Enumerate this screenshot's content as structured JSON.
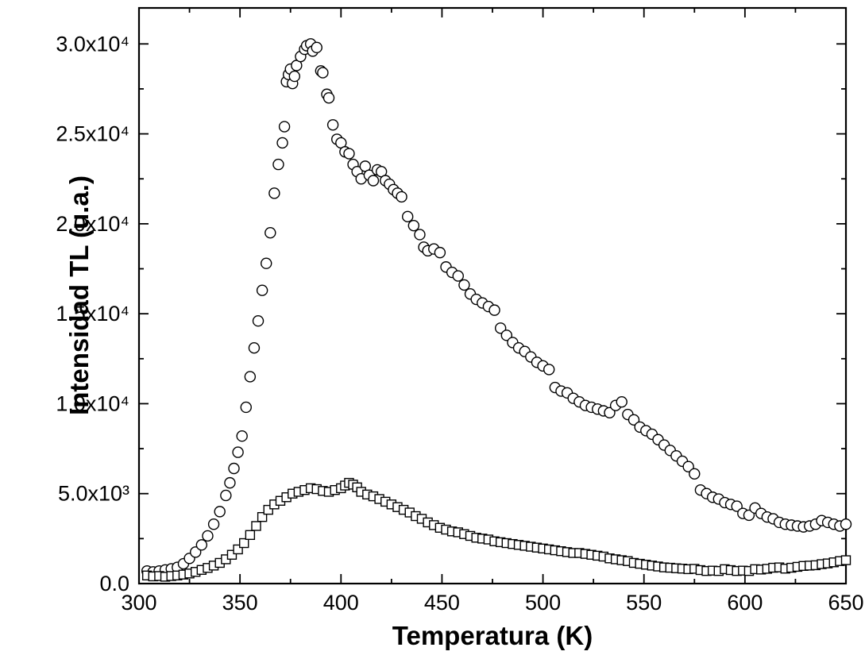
{
  "figure": {
    "background": "#ffffff",
    "frame_color": "#000000",
    "marker_color": "#000000",
    "marker_fill": "#ffffff"
  },
  "chart_data": {
    "type": "scatter",
    "title": "",
    "xlabel": "Temperatura (K)",
    "ylabel": "Intensidad TL (u.a.)",
    "xlim": [
      300,
      650
    ],
    "ylim": [
      0,
      32000
    ],
    "grid": false,
    "legend": "none",
    "frame": true,
    "x_major_ticks": [
      300,
      350,
      400,
      450,
      500,
      550,
      600,
      650
    ],
    "x_tick_labels": [
      "300",
      "350",
      "400",
      "450",
      "500",
      "550",
      "600",
      "650"
    ],
    "x_minor_step": 25,
    "y_major_ticks": [
      0,
      5000,
      10000,
      15000,
      20000,
      25000,
      30000
    ],
    "y_tick_labels": [
      "0.0",
      "5.0x10³",
      "1.0x10⁴",
      "1.5x10⁴",
      "2.0x10⁴",
      "2.5x10⁴",
      "3.0x10⁴"
    ],
    "y_minor_step": 2500,
    "series": [
      {
        "name": "circle-series",
        "marker": "circle",
        "points": [
          [
            304,
            700
          ],
          [
            307,
            650
          ],
          [
            310,
            700
          ],
          [
            313,
            760
          ],
          [
            316,
            820
          ],
          [
            319,
            900
          ],
          [
            322,
            1100
          ],
          [
            325,
            1400
          ],
          [
            328,
            1750
          ],
          [
            331,
            2150
          ],
          [
            334,
            2650
          ],
          [
            337,
            3300
          ],
          [
            340,
            4000
          ],
          [
            343,
            4900
          ],
          [
            345,
            5600
          ],
          [
            347,
            6400
          ],
          [
            349,
            7300
          ],
          [
            351,
            8200
          ],
          [
            353,
            9800
          ],
          [
            355,
            11500
          ],
          [
            357,
            13100
          ],
          [
            359,
            14600
          ],
          [
            361,
            16300
          ],
          [
            363,
            17800
          ],
          [
            365,
            19500
          ],
          [
            367,
            21700
          ],
          [
            369,
            23300
          ],
          [
            371,
            24500
          ],
          [
            372,
            25400
          ],
          [
            373,
            27900
          ],
          [
            374,
            28300
          ],
          [
            375,
            28600
          ],
          [
            376,
            27800
          ],
          [
            377,
            28200
          ],
          [
            378,
            28800
          ],
          [
            380,
            29300
          ],
          [
            382,
            29700
          ],
          [
            383,
            29900
          ],
          [
            385,
            30000
          ],
          [
            386,
            29600
          ],
          [
            388,
            29800
          ],
          [
            390,
            28500
          ],
          [
            391,
            28400
          ],
          [
            393,
            27200
          ],
          [
            394,
            27000
          ],
          [
            396,
            25500
          ],
          [
            398,
            24700
          ],
          [
            400,
            24500
          ],
          [
            402,
            24000
          ],
          [
            404,
            23900
          ],
          [
            406,
            23300
          ],
          [
            408,
            22900
          ],
          [
            410,
            22500
          ],
          [
            412,
            23200
          ],
          [
            414,
            22700
          ],
          [
            416,
            22400
          ],
          [
            418,
            23000
          ],
          [
            420,
            22900
          ],
          [
            422,
            22400
          ],
          [
            424,
            22200
          ],
          [
            426,
            21900
          ],
          [
            428,
            21700
          ],
          [
            430,
            21500
          ],
          [
            433,
            20400
          ],
          [
            436,
            19900
          ],
          [
            439,
            19400
          ],
          [
            441,
            18700
          ],
          [
            443,
            18500
          ],
          [
            446,
            18600
          ],
          [
            449,
            18400
          ],
          [
            452,
            17600
          ],
          [
            455,
            17300
          ],
          [
            458,
            17100
          ],
          [
            461,
            16600
          ],
          [
            464,
            16100
          ],
          [
            467,
            15800
          ],
          [
            470,
            15600
          ],
          [
            473,
            15400
          ],
          [
            476,
            15200
          ],
          [
            479,
            14200
          ],
          [
            482,
            13800
          ],
          [
            485,
            13400
          ],
          [
            488,
            13100
          ],
          [
            491,
            12900
          ],
          [
            494,
            12600
          ],
          [
            497,
            12300
          ],
          [
            500,
            12100
          ],
          [
            503,
            11900
          ],
          [
            506,
            10900
          ],
          [
            509,
            10700
          ],
          [
            512,
            10600
          ],
          [
            515,
            10300
          ],
          [
            518,
            10100
          ],
          [
            521,
            9900
          ],
          [
            524,
            9800
          ],
          [
            527,
            9700
          ],
          [
            530,
            9600
          ],
          [
            533,
            9500
          ],
          [
            536,
            9900
          ],
          [
            539,
            10100
          ],
          [
            542,
            9400
          ],
          [
            545,
            9100
          ],
          [
            548,
            8700
          ],
          [
            551,
            8500
          ],
          [
            554,
            8300
          ],
          [
            557,
            8000
          ],
          [
            560,
            7700
          ],
          [
            563,
            7400
          ],
          [
            566,
            7100
          ],
          [
            569,
            6800
          ],
          [
            572,
            6500
          ],
          [
            575,
            6100
          ],
          [
            578,
            5200
          ],
          [
            581,
            5000
          ],
          [
            584,
            4800
          ],
          [
            587,
            4700
          ],
          [
            590,
            4500
          ],
          [
            593,
            4400
          ],
          [
            596,
            4300
          ],
          [
            599,
            3900
          ],
          [
            602,
            3800
          ],
          [
            605,
            4200
          ],
          [
            608,
            3900
          ],
          [
            611,
            3700
          ],
          [
            614,
            3600
          ],
          [
            617,
            3400
          ],
          [
            620,
            3300
          ],
          [
            623,
            3250
          ],
          [
            626,
            3200
          ],
          [
            629,
            3150
          ],
          [
            632,
            3200
          ],
          [
            635,
            3300
          ],
          [
            638,
            3500
          ],
          [
            641,
            3400
          ],
          [
            644,
            3300
          ],
          [
            647,
            3200
          ],
          [
            650,
            3300
          ]
        ]
      },
      {
        "name": "square-series",
        "marker": "square",
        "points": [
          [
            304,
            450
          ],
          [
            307,
            400
          ],
          [
            310,
            420
          ],
          [
            313,
            380
          ],
          [
            316,
            420
          ],
          [
            319,
            450
          ],
          [
            322,
            500
          ],
          [
            325,
            560
          ],
          [
            328,
            650
          ],
          [
            331,
            760
          ],
          [
            334,
            870
          ],
          [
            337,
            1000
          ],
          [
            340,
            1150
          ],
          [
            343,
            1350
          ],
          [
            346,
            1600
          ],
          [
            349,
            1900
          ],
          [
            352,
            2250
          ],
          [
            355,
            2700
          ],
          [
            358,
            3200
          ],
          [
            361,
            3700
          ],
          [
            364,
            4100
          ],
          [
            367,
            4400
          ],
          [
            370,
            4600
          ],
          [
            373,
            4800
          ],
          [
            376,
            5000
          ],
          [
            379,
            5100
          ],
          [
            382,
            5200
          ],
          [
            385,
            5300
          ],
          [
            388,
            5250
          ],
          [
            391,
            5150
          ],
          [
            394,
            5100
          ],
          [
            397,
            5200
          ],
          [
            400,
            5300
          ],
          [
            402,
            5450
          ],
          [
            404,
            5600
          ],
          [
            406,
            5500
          ],
          [
            408,
            5350
          ],
          [
            410,
            5100
          ],
          [
            413,
            4950
          ],
          [
            416,
            4850
          ],
          [
            419,
            4700
          ],
          [
            422,
            4550
          ],
          [
            425,
            4400
          ],
          [
            428,
            4250
          ],
          [
            431,
            4100
          ],
          [
            434,
            3950
          ],
          [
            437,
            3750
          ],
          [
            440,
            3600
          ],
          [
            443,
            3400
          ],
          [
            446,
            3250
          ],
          [
            449,
            3100
          ],
          [
            452,
            3000
          ],
          [
            455,
            2900
          ],
          [
            458,
            2850
          ],
          [
            461,
            2750
          ],
          [
            464,
            2650
          ],
          [
            467,
            2550
          ],
          [
            470,
            2500
          ],
          [
            473,
            2450
          ],
          [
            476,
            2350
          ],
          [
            479,
            2300
          ],
          [
            482,
            2250
          ],
          [
            485,
            2200
          ],
          [
            488,
            2150
          ],
          [
            491,
            2100
          ],
          [
            494,
            2050
          ],
          [
            497,
            2000
          ],
          [
            500,
            1950
          ],
          [
            503,
            1900
          ],
          [
            506,
            1850
          ],
          [
            509,
            1800
          ],
          [
            512,
            1750
          ],
          [
            515,
            1700
          ],
          [
            518,
            1700
          ],
          [
            521,
            1650
          ],
          [
            524,
            1600
          ],
          [
            527,
            1550
          ],
          [
            530,
            1500
          ],
          [
            533,
            1400
          ],
          [
            536,
            1350
          ],
          [
            539,
            1300
          ],
          [
            542,
            1250
          ],
          [
            545,
            1150
          ],
          [
            548,
            1100
          ],
          [
            551,
            1050
          ],
          [
            554,
            1000
          ],
          [
            557,
            950
          ],
          [
            560,
            900
          ],
          [
            563,
            880
          ],
          [
            566,
            850
          ],
          [
            569,
            830
          ],
          [
            572,
            800
          ],
          [
            575,
            820
          ],
          [
            578,
            750
          ],
          [
            581,
            700
          ],
          [
            584,
            720
          ],
          [
            587,
            700
          ],
          [
            590,
            800
          ],
          [
            593,
            750
          ],
          [
            596,
            700
          ],
          [
            599,
            720
          ],
          [
            602,
            700
          ],
          [
            605,
            800
          ],
          [
            608,
            780
          ],
          [
            611,
            820
          ],
          [
            614,
            880
          ],
          [
            617,
            900
          ],
          [
            620,
            830
          ],
          [
            623,
            880
          ],
          [
            626,
            930
          ],
          [
            629,
            980
          ],
          [
            632,
            1000
          ],
          [
            635,
            1020
          ],
          [
            638,
            1080
          ],
          [
            641,
            1120
          ],
          [
            644,
            1180
          ],
          [
            647,
            1250
          ],
          [
            650,
            1300
          ]
        ]
      }
    ]
  }
}
